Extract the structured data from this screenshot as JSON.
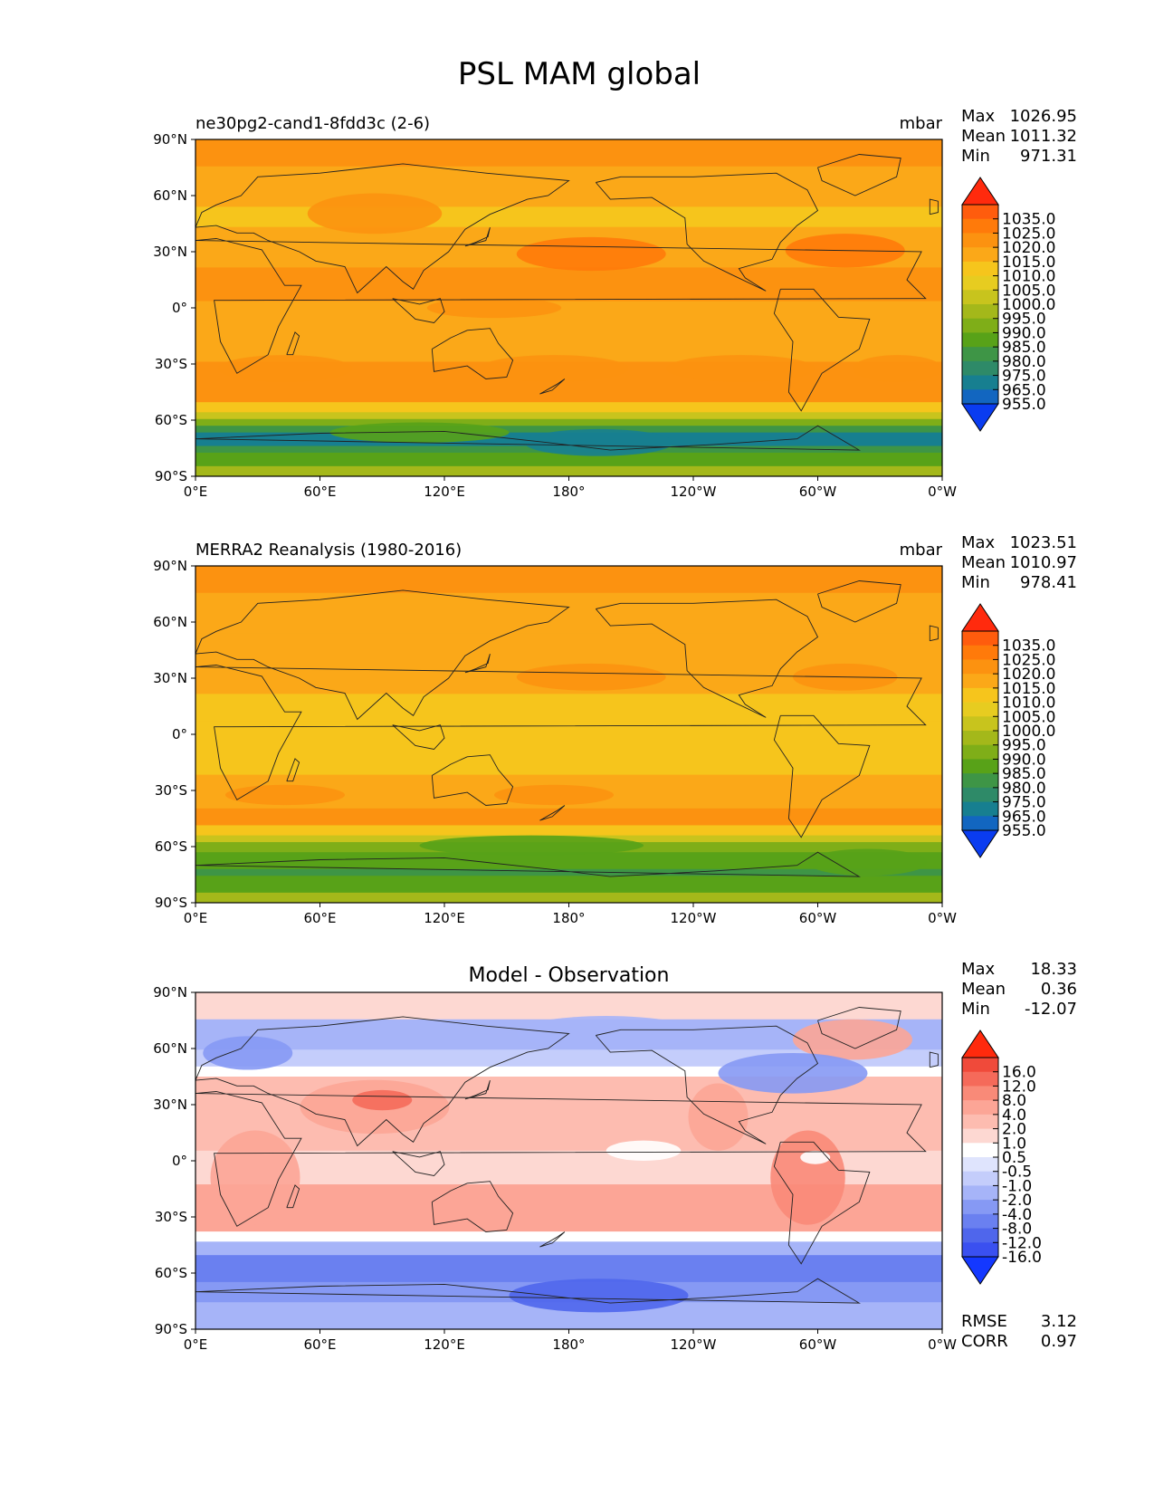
{
  "figure_title": "PSL MAM global",
  "x_ticks": [
    "0°E",
    "60°E",
    "120°E",
    "180°",
    "120°W",
    "60°W",
    "0°W"
  ],
  "y_ticks": [
    "90°N",
    "60°N",
    "30°N",
    "0°",
    "30°S",
    "60°S",
    "90°S"
  ],
  "panels": [
    {
      "title_left": "ne30pg2-cand1-8fdd3c (2-6)",
      "title_center": "",
      "units": "mbar",
      "stats": [
        {
          "label": "Max",
          "value": "1026.95"
        },
        {
          "label": "Mean",
          "value": "1011.32"
        },
        {
          "label": "Min",
          "value": "971.31"
        }
      ],
      "colorbar": {
        "labels": [
          "1035.0",
          "1025.0",
          "1020.0",
          "1015.0",
          "1010.0",
          "1005.0",
          "1000.0",
          "995.0",
          "990.0",
          "985.0",
          "980.0",
          "975.0",
          "965.0",
          "955.0"
        ],
        "colors": [
          "#ff2a0d",
          "#ff5c0d",
          "#ff7a0a",
          "#fc9210",
          "#fba818",
          "#f6c51c",
          "#e7cc20",
          "#c8c41d",
          "#a4b81a",
          "#7fae18",
          "#58a218",
          "#3e9546",
          "#2e8a68",
          "#177f90",
          "#1266c0",
          "#0a3cf0"
        ]
      },
      "map_style": "model",
      "extra_stats": []
    },
    {
      "title_left": "MERRA2 Reanalysis (1980-2016)",
      "title_center": "",
      "units": "mbar",
      "stats": [
        {
          "label": "Max",
          "value": "1023.51"
        },
        {
          "label": "Mean",
          "value": "1010.97"
        },
        {
          "label": "Min",
          "value": "978.41"
        }
      ],
      "colorbar": {
        "labels": [
          "1035.0",
          "1025.0",
          "1020.0",
          "1015.0",
          "1010.0",
          "1005.0",
          "1000.0",
          "995.0",
          "990.0",
          "985.0",
          "980.0",
          "975.0",
          "965.0",
          "955.0"
        ],
        "colors": [
          "#ff2a0d",
          "#ff5c0d",
          "#ff7a0a",
          "#fc9210",
          "#fba818",
          "#f6c51c",
          "#e7cc20",
          "#c8c41d",
          "#a4b81a",
          "#7fae18",
          "#58a218",
          "#3e9546",
          "#2e8a68",
          "#177f90",
          "#1266c0",
          "#0a3cf0"
        ]
      },
      "map_style": "obs",
      "extra_stats": []
    },
    {
      "title_left": "",
      "title_center": "Model - Observation",
      "units": "",
      "stats": [
        {
          "label": "Max",
          "value": "18.33"
        },
        {
          "label": "Mean",
          "value": "0.36"
        },
        {
          "label": "Min",
          "value": "-12.07"
        }
      ],
      "colorbar": {
        "labels": [
          "16.0",
          "12.0",
          "8.0",
          "4.0",
          "2.0",
          "1.0",
          "0.5",
          "-0.5",
          "-1.0",
          "-2.0",
          "-4.0",
          "-8.0",
          "-12.0",
          "-16.0"
        ],
        "colors": [
          "#ff2a0d",
          "#f04a3a",
          "#f56a5a",
          "#f98a78",
          "#fca596",
          "#fdbcb0",
          "#fdd8d2",
          "#ffffff",
          "#dfe4fd",
          "#c4cdfb",
          "#a6b4f8",
          "#8699f4",
          "#6a80f0",
          "#4f66ec",
          "#3a50f0",
          "#1438ff"
        ]
      },
      "map_style": "diff",
      "extra_stats": [
        {
          "label": "RMSE",
          "value": "3.12"
        },
        {
          "label": "CORR",
          "value": "0.97"
        }
      ]
    }
  ]
}
